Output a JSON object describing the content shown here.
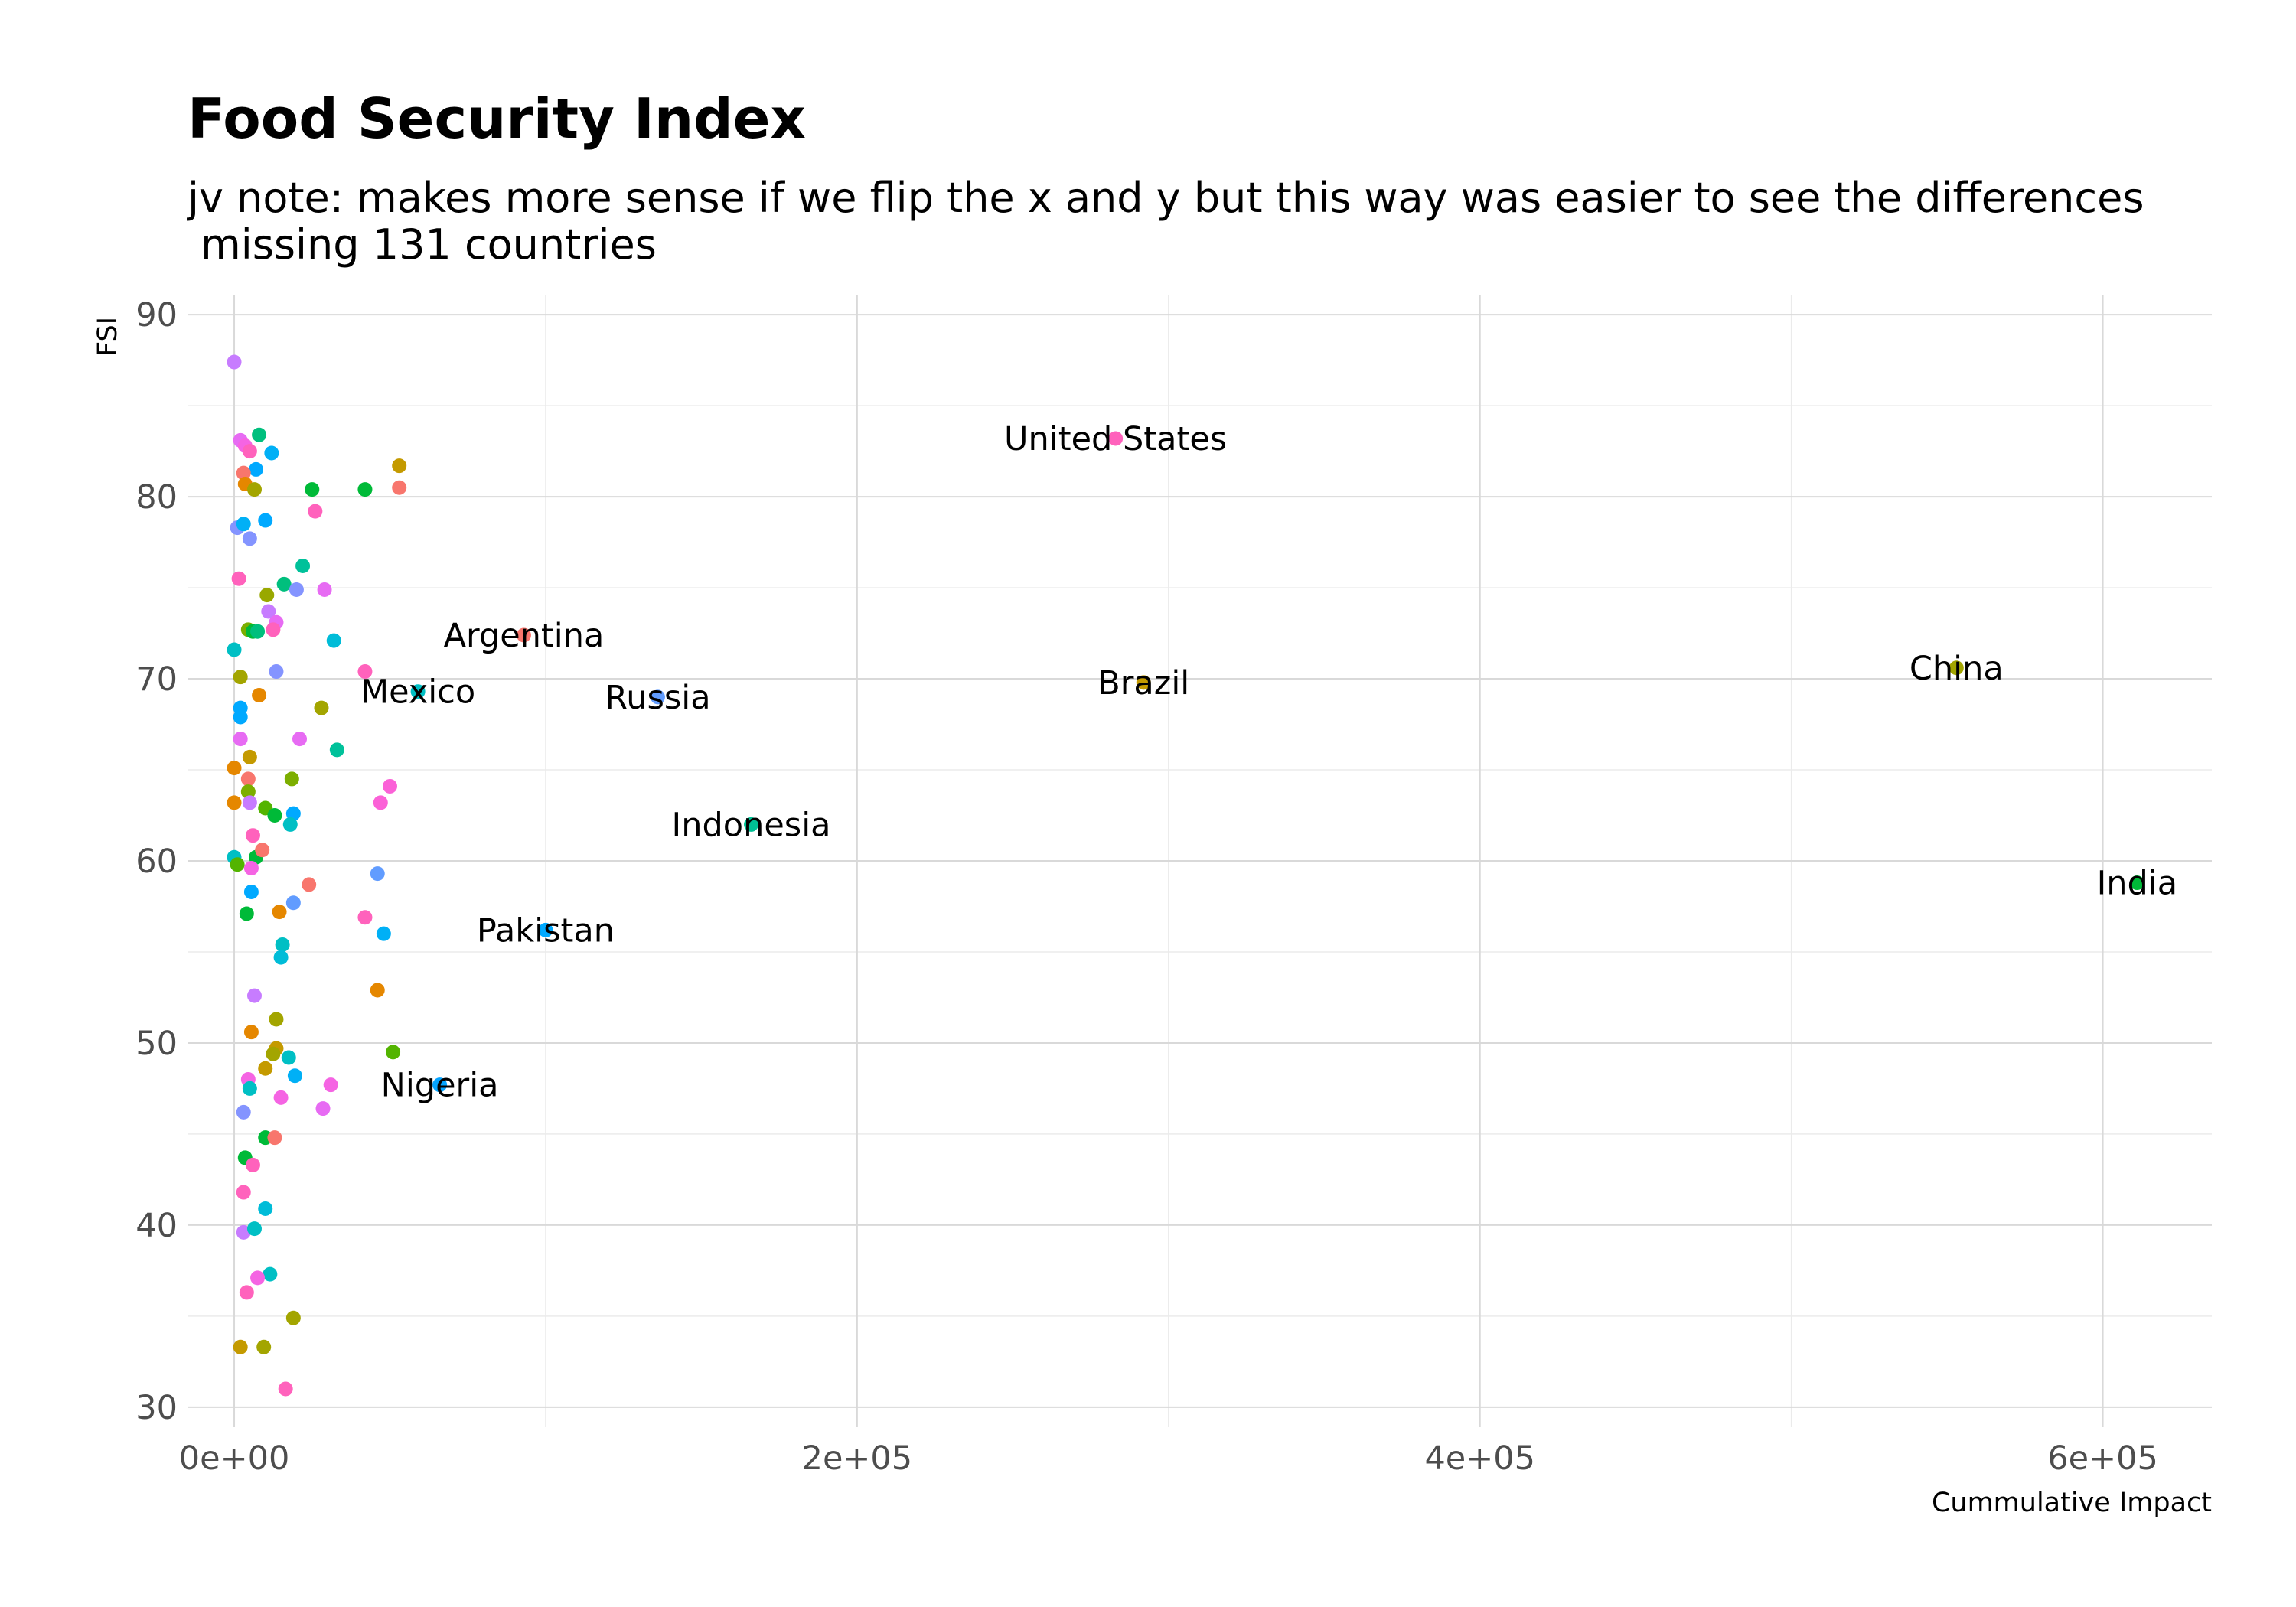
{
  "chart_data": {
    "type": "scatter",
    "title": "Food Security Index",
    "subtitle_lines": [
      "jv note: makes more sense if we flip the x and y but  this way was easier to see the differences",
      " missing 131 countries"
    ],
    "xlabel": "Cummulative Impact",
    "ylabel": "FSI",
    "xlim": [
      -15000,
      635000
    ],
    "ylim": [
      28.9,
      91.1
    ],
    "x_ticks": [
      0,
      200000,
      400000,
      600000
    ],
    "x_tick_labels": [
      "0e+00",
      "2e+05",
      "4e+05",
      "6e+05"
    ],
    "y_ticks": [
      30,
      40,
      50,
      60,
      70,
      80,
      90
    ],
    "y_tick_labels": [
      "30",
      "40",
      "50",
      "60",
      "70",
      "80",
      "90"
    ],
    "grid": true,
    "legend": "none",
    "labeled_points": [
      {
        "name": "United States",
        "x": 283000,
        "y": 83.2,
        "color": "#FF62BC"
      },
      {
        "name": "Argentina",
        "x": 93000,
        "y": 72.4,
        "color": "#F8766D"
      },
      {
        "name": "Mexico",
        "x": 59000,
        "y": 69.3,
        "color": "#00BFC4"
      },
      {
        "name": "Russia",
        "x": 136000,
        "y": 69.0,
        "color": "#619CFF"
      },
      {
        "name": "Brazil",
        "x": 292000,
        "y": 69.8,
        "color": "#C49A00"
      },
      {
        "name": "China",
        "x": 553000,
        "y": 70.6,
        "color": "#A3A500"
      },
      {
        "name": "Indonesia",
        "x": 166000,
        "y": 62.0,
        "color": "#00C094"
      },
      {
        "name": "Pakistan",
        "x": 100000,
        "y": 56.2,
        "color": "#00A9FF"
      },
      {
        "name": "Nigeria",
        "x": 66000,
        "y": 47.7,
        "color": "#06A4FF"
      },
      {
        "name": "India",
        "x": 611000,
        "y": 58.8,
        "color": "#00BA38"
      }
    ],
    "points": [
      {
        "x": 0,
        "y": 87.4,
        "color": "#C77CFF"
      },
      {
        "x": 2000,
        "y": 83.1,
        "color": "#E76BF3"
      },
      {
        "x": 3500,
        "y": 82.8,
        "color": "#F564E3"
      },
      {
        "x": 5000,
        "y": 82.5,
        "color": "#FF62BC"
      },
      {
        "x": 8000,
        "y": 83.4,
        "color": "#00BF7D"
      },
      {
        "x": 12000,
        "y": 82.4,
        "color": "#00B0F6"
      },
      {
        "x": 7000,
        "y": 81.5,
        "color": "#00A9FF"
      },
      {
        "x": 3000,
        "y": 81.3,
        "color": "#F8766D"
      },
      {
        "x": 3500,
        "y": 80.7,
        "color": "#E58700"
      },
      {
        "x": 6500,
        "y": 80.4,
        "color": "#A3A500"
      },
      {
        "x": 25000,
        "y": 80.4,
        "color": "#00BA38"
      },
      {
        "x": 42000,
        "y": 80.4,
        "color": "#00BA38"
      },
      {
        "x": 53000,
        "y": 81.7,
        "color": "#C49A00"
      },
      {
        "x": 53000,
        "y": 80.5,
        "color": "#F8766D"
      },
      {
        "x": 26000,
        "y": 79.2,
        "color": "#FF62BC"
      },
      {
        "x": 1000,
        "y": 78.3,
        "color": "#8494FF"
      },
      {
        "x": 3000,
        "y": 78.5,
        "color": "#00B0F6"
      },
      {
        "x": 10000,
        "y": 78.7,
        "color": "#00A9FF"
      },
      {
        "x": 5000,
        "y": 77.7,
        "color": "#8494FF"
      },
      {
        "x": 22000,
        "y": 76.2,
        "color": "#00C19A"
      },
      {
        "x": 1500,
        "y": 75.5,
        "color": "#FF62BC"
      },
      {
        "x": 10500,
        "y": 74.6,
        "color": "#99A800"
      },
      {
        "x": 16000,
        "y": 75.2,
        "color": "#00BF7D"
      },
      {
        "x": 20000,
        "y": 74.9,
        "color": "#8494FF"
      },
      {
        "x": 29000,
        "y": 74.9,
        "color": "#E76BF3"
      },
      {
        "x": 11000,
        "y": 73.7,
        "color": "#C77CFF"
      },
      {
        "x": 13500,
        "y": 73.1,
        "color": "#E76BF3"
      },
      {
        "x": 4500,
        "y": 72.7,
        "color": "#7CAE00"
      },
      {
        "x": 6000,
        "y": 72.6,
        "color": "#00BA38"
      },
      {
        "x": 7500,
        "y": 72.6,
        "color": "#00BF7D"
      },
      {
        "x": 12500,
        "y": 72.7,
        "color": "#FF62BC"
      },
      {
        "x": 32000,
        "y": 72.1,
        "color": "#00BCD8"
      },
      {
        "x": 0,
        "y": 71.6,
        "color": "#00BFC4"
      },
      {
        "x": 2000,
        "y": 70.1,
        "color": "#A3A500"
      },
      {
        "x": 13500,
        "y": 70.4,
        "color": "#8494FF"
      },
      {
        "x": 42000,
        "y": 70.4,
        "color": "#FF62BC"
      },
      {
        "x": 8000,
        "y": 69.1,
        "color": "#E58700"
      },
      {
        "x": 2000,
        "y": 68.4,
        "color": "#00A9FF"
      },
      {
        "x": 2000,
        "y": 67.9,
        "color": "#00A9FF"
      },
      {
        "x": 28000,
        "y": 68.4,
        "color": "#A3A500"
      },
      {
        "x": 2000,
        "y": 66.7,
        "color": "#E76BF3"
      },
      {
        "x": 21000,
        "y": 66.7,
        "color": "#E76BF3"
      },
      {
        "x": 33000,
        "y": 66.1,
        "color": "#00C19A"
      },
      {
        "x": 5000,
        "y": 65.7,
        "color": "#C49A00"
      },
      {
        "x": 0,
        "y": 65.1,
        "color": "#E58700"
      },
      {
        "x": 4500,
        "y": 64.5,
        "color": "#F8766D"
      },
      {
        "x": 18500,
        "y": 64.5,
        "color": "#7CAE00"
      },
      {
        "x": 50000,
        "y": 64.1,
        "color": "#FB61D7"
      },
      {
        "x": 4500,
        "y": 63.8,
        "color": "#7CAE00"
      },
      {
        "x": 0,
        "y": 63.2,
        "color": "#E58700"
      },
      {
        "x": 5000,
        "y": 63.2,
        "color": "#C77CFF"
      },
      {
        "x": 47000,
        "y": 63.2,
        "color": "#FB61D7"
      },
      {
        "x": 10000,
        "y": 62.9,
        "color": "#53B400"
      },
      {
        "x": 13000,
        "y": 62.5,
        "color": "#00BA38"
      },
      {
        "x": 19000,
        "y": 62.6,
        "color": "#00A9FF"
      },
      {
        "x": 18000,
        "y": 62.0,
        "color": "#00BFC4"
      },
      {
        "x": 6000,
        "y": 61.4,
        "color": "#FF62BC"
      },
      {
        "x": 0,
        "y": 60.2,
        "color": "#00BFC4"
      },
      {
        "x": 1000,
        "y": 59.8,
        "color": "#53B400"
      },
      {
        "x": 7000,
        "y": 60.2,
        "color": "#00BA38"
      },
      {
        "x": 9000,
        "y": 60.6,
        "color": "#F8766D"
      },
      {
        "x": 5500,
        "y": 59.6,
        "color": "#F564E3"
      },
      {
        "x": 46000,
        "y": 59.3,
        "color": "#619CFF"
      },
      {
        "x": 5500,
        "y": 58.3,
        "color": "#00A9FF"
      },
      {
        "x": 24000,
        "y": 58.7,
        "color": "#F8766D"
      },
      {
        "x": 19000,
        "y": 57.7,
        "color": "#619CFF"
      },
      {
        "x": 4000,
        "y": 57.1,
        "color": "#00BA38"
      },
      {
        "x": 14500,
        "y": 57.2,
        "color": "#E58700"
      },
      {
        "x": 42000,
        "y": 56.9,
        "color": "#FF62BC"
      },
      {
        "x": 48000,
        "y": 56.0,
        "color": "#00B0F6"
      },
      {
        "x": 15500,
        "y": 55.4,
        "color": "#00BFC4"
      },
      {
        "x": 15000,
        "y": 54.7,
        "color": "#00BCD8"
      },
      {
        "x": 46000,
        "y": 52.9,
        "color": "#E58700"
      },
      {
        "x": 6500,
        "y": 52.6,
        "color": "#C77CFF"
      },
      {
        "x": 13500,
        "y": 51.3,
        "color": "#A3A500"
      },
      {
        "x": 5500,
        "y": 50.6,
        "color": "#E58700"
      },
      {
        "x": 13500,
        "y": 49.7,
        "color": "#C49A00"
      },
      {
        "x": 12500,
        "y": 49.4,
        "color": "#A3A500"
      },
      {
        "x": 17500,
        "y": 49.2,
        "color": "#00BFC4"
      },
      {
        "x": 51000,
        "y": 49.5,
        "color": "#53B400"
      },
      {
        "x": 10000,
        "y": 48.6,
        "color": "#C49A00"
      },
      {
        "x": 19500,
        "y": 48.2,
        "color": "#00B0F6"
      },
      {
        "x": 4500,
        "y": 48.0,
        "color": "#F564E3"
      },
      {
        "x": 5000,
        "y": 47.5,
        "color": "#00BFC4"
      },
      {
        "x": 31000,
        "y": 47.7,
        "color": "#F564E3"
      },
      {
        "x": 15000,
        "y": 47.0,
        "color": "#F564E3"
      },
      {
        "x": 28500,
        "y": 46.4,
        "color": "#E76BF3"
      },
      {
        "x": 3000,
        "y": 46.2,
        "color": "#8494FF"
      },
      {
        "x": 10000,
        "y": 44.8,
        "color": "#00BA38"
      },
      {
        "x": 13000,
        "y": 44.8,
        "color": "#F8766D"
      },
      {
        "x": 3500,
        "y": 43.7,
        "color": "#00BA38"
      },
      {
        "x": 6000,
        "y": 43.3,
        "color": "#FF62BC"
      },
      {
        "x": 3000,
        "y": 41.8,
        "color": "#FF62BC"
      },
      {
        "x": 10000,
        "y": 40.9,
        "color": "#00BCD8"
      },
      {
        "x": 3000,
        "y": 39.6,
        "color": "#C77CFF"
      },
      {
        "x": 6500,
        "y": 39.8,
        "color": "#00BFC4"
      },
      {
        "x": 11500,
        "y": 37.3,
        "color": "#00BFC4"
      },
      {
        "x": 7500,
        "y": 37.1,
        "color": "#F564E3"
      },
      {
        "x": 4000,
        "y": 36.3,
        "color": "#FF62BC"
      },
      {
        "x": 19000,
        "y": 34.9,
        "color": "#A3A500"
      },
      {
        "x": 2000,
        "y": 33.3,
        "color": "#C49A00"
      },
      {
        "x": 9500,
        "y": 33.3,
        "color": "#A3A500"
      },
      {
        "x": 16500,
        "y": 31.0,
        "color": "#FF62BC"
      }
    ]
  }
}
